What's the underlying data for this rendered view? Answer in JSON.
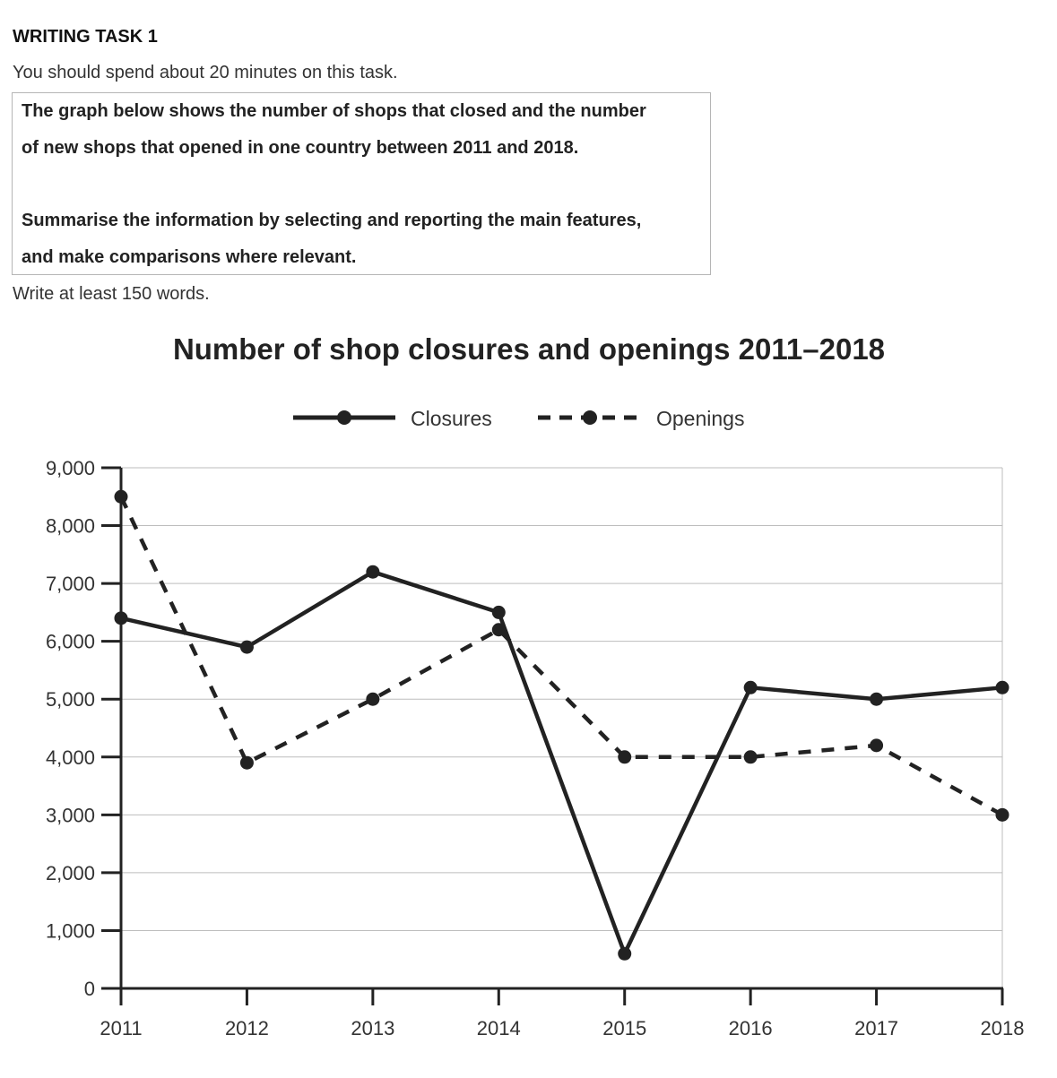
{
  "task": {
    "heading": "WRITING TASK 1",
    "instruction": "You should spend about 20 minutes on this task.",
    "prompt_lines": [
      "The graph below shows the number of shops that closed and the number",
      "of new shops that opened in one country between 2011 and 2018.",
      "Summarise the information by selecting and reporting the main features,",
      "and make comparisons where relevant."
    ],
    "word_count": "Write at least 150 words."
  },
  "chart_data": {
    "type": "line",
    "title": "Number of shop closures and openings 2011–2018",
    "xlabel": "",
    "ylabel": "",
    "categories": [
      "2011",
      "2012",
      "2013",
      "2014",
      "2015",
      "2016",
      "2017",
      "2018"
    ],
    "series": [
      {
        "name": "Closures",
        "style": "solid",
        "values": [
          6400,
          5900,
          7200,
          6500,
          600,
          5200,
          5000,
          5200
        ]
      },
      {
        "name": "Openings",
        "style": "dashed",
        "values": [
          8500,
          3900,
          5000,
          6200,
          4000,
          4000,
          4200,
          3000
        ]
      }
    ],
    "ylim": [
      0,
      9000
    ],
    "yticks": [
      0,
      1000,
      2000,
      3000,
      4000,
      5000,
      6000,
      7000,
      8000,
      9000
    ],
    "ytick_labels": [
      "0",
      "1,000",
      "2,000",
      "3,000",
      "4,000",
      "5,000",
      "6,000",
      "7,000",
      "8,000",
      "9,000"
    ],
    "grid": true,
    "legend_position": "top-center",
    "line_color": "#222222",
    "grid_color": "#bdbdbd"
  }
}
